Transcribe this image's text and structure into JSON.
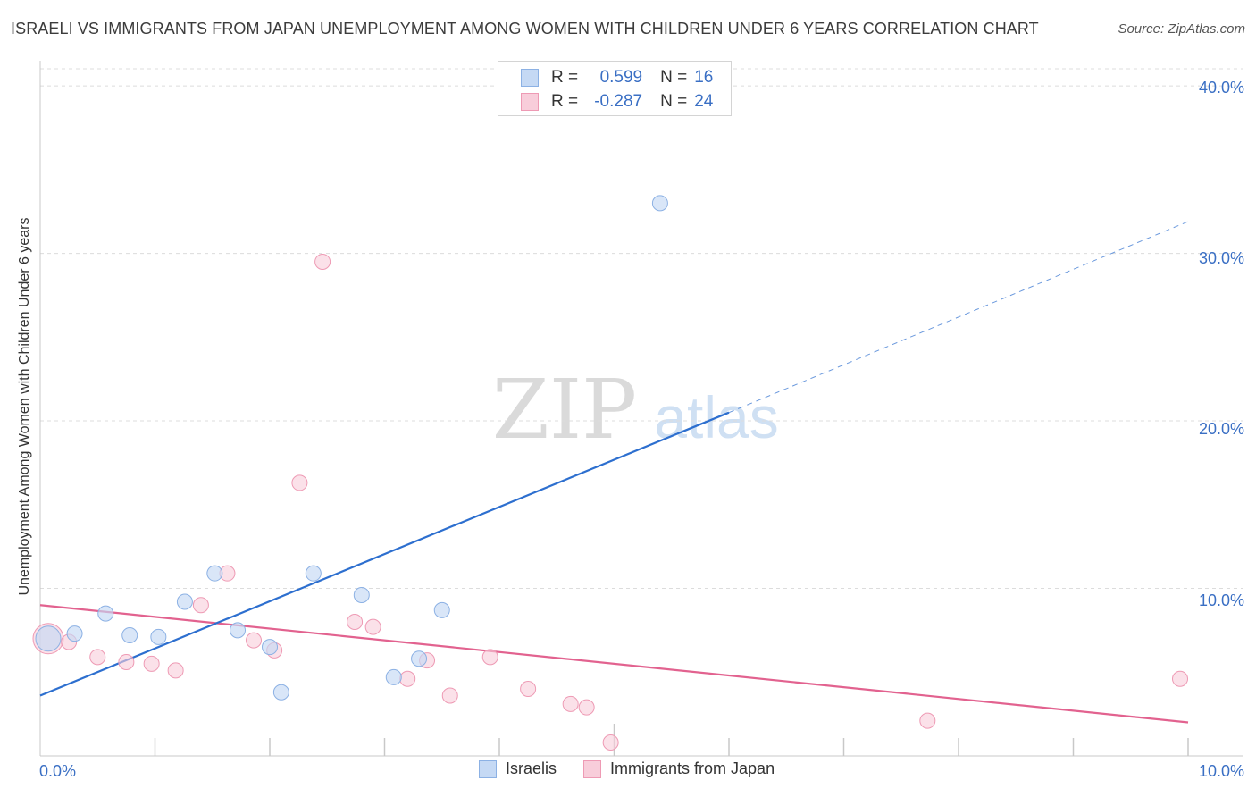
{
  "header": {
    "title": "ISRAELI VS IMMIGRANTS FROM JAPAN UNEMPLOYMENT AMONG WOMEN WITH CHILDREN UNDER 6 YEARS CORRELATION CHART",
    "source": "Source: ZipAtlas.com"
  },
  "watermark": {
    "zip": "ZIP",
    "atlas": "atlas"
  },
  "stats": {
    "israelis": {
      "r_label": "R =",
      "r_value": "0.599",
      "n_label": "N =",
      "n_value": "16"
    },
    "japan": {
      "r_label": "R =",
      "r_value": "-0.287",
      "n_label": "N =",
      "n_value": "24"
    }
  },
  "legend": {
    "israelis": "Israelis",
    "japan": "Immigrants from Japan"
  },
  "colors": {
    "israelis_fill": "#c5d9f4",
    "israelis_stroke": "#8cb1e4",
    "israelis_line": "#2d6fcf",
    "japan_fill": "#f8cdda",
    "japan_stroke": "#ee9ab4",
    "japan_line": "#e2628f",
    "tick_text": "#3a6fc4",
    "grid": "#dcdcdc"
  },
  "chart_data": {
    "type": "scatter",
    "title": "ISRAELI VS IMMIGRANTS FROM JAPAN UNEMPLOYMENT AMONG WOMEN WITH CHILDREN UNDER 6 YEARS CORRELATION CHART",
    "xlabel": "",
    "ylabel": "Unemployment Among Women with Children Under 6 years",
    "xlim": [
      0,
      10
    ],
    "ylim": [
      0,
      41.5
    ],
    "x_tick_labels": [
      "0.0%",
      "10.0%"
    ],
    "y_ticks": [
      10,
      20,
      30,
      40
    ],
    "y_tick_labels": [
      "10.0%",
      "20.0%",
      "30.0%",
      "40.0%"
    ],
    "grid": true,
    "series": [
      {
        "name": "Israelis",
        "r": 0.599,
        "n": 16,
        "points": [
          {
            "x": 0.07,
            "y": 7.0,
            "big": true
          },
          {
            "x": 0.3,
            "y": 7.3
          },
          {
            "x": 0.57,
            "y": 8.5
          },
          {
            "x": 0.78,
            "y": 7.2
          },
          {
            "x": 1.03,
            "y": 7.1
          },
          {
            "x": 1.26,
            "y": 9.2
          },
          {
            "x": 1.52,
            "y": 10.9
          },
          {
            "x": 1.72,
            "y": 7.5
          },
          {
            "x": 2.0,
            "y": 6.5
          },
          {
            "x": 2.1,
            "y": 3.8
          },
          {
            "x": 2.38,
            "y": 10.9
          },
          {
            "x": 2.8,
            "y": 9.6
          },
          {
            "x": 3.08,
            "y": 4.7
          },
          {
            "x": 3.3,
            "y": 5.8
          },
          {
            "x": 3.5,
            "y": 8.7
          },
          {
            "x": 5.4,
            "y": 33.0
          }
        ],
        "trend": {
          "x0": 0,
          "y0": 3.6,
          "x1": 6.0,
          "y1": 20.5,
          "x_dash_end": 10.0,
          "y_dash_end": 31.9
        }
      },
      {
        "name": "Immigrants from Japan",
        "r": -0.287,
        "n": 24,
        "points": [
          {
            "x": 0.07,
            "y": 7.0,
            "big": true
          },
          {
            "x": 0.25,
            "y": 6.8
          },
          {
            "x": 0.5,
            "y": 5.9
          },
          {
            "x": 0.75,
            "y": 5.6
          },
          {
            "x": 0.97,
            "y": 5.5
          },
          {
            "x": 1.18,
            "y": 5.1
          },
          {
            "x": 1.4,
            "y": 9.0
          },
          {
            "x": 1.63,
            "y": 10.9
          },
          {
            "x": 1.86,
            "y": 6.9
          },
          {
            "x": 2.04,
            "y": 6.3
          },
          {
            "x": 2.26,
            "y": 16.3
          },
          {
            "x": 2.46,
            "y": 29.5
          },
          {
            "x": 2.74,
            "y": 8.0
          },
          {
            "x": 2.9,
            "y": 7.7
          },
          {
            "x": 3.2,
            "y": 4.6
          },
          {
            "x": 3.37,
            "y": 5.7
          },
          {
            "x": 3.57,
            "y": 3.6
          },
          {
            "x": 3.92,
            "y": 5.9
          },
          {
            "x": 4.25,
            "y": 4.0
          },
          {
            "x": 4.62,
            "y": 3.1
          },
          {
            "x": 4.76,
            "y": 2.9
          },
          {
            "x": 4.97,
            "y": 0.8
          },
          {
            "x": 7.73,
            "y": 2.1
          },
          {
            "x": 9.93,
            "y": 4.6
          }
        ],
        "trend": {
          "x0": 0,
          "y0": 9.0,
          "x1": 10.0,
          "y1": 2.0
        }
      }
    ]
  }
}
